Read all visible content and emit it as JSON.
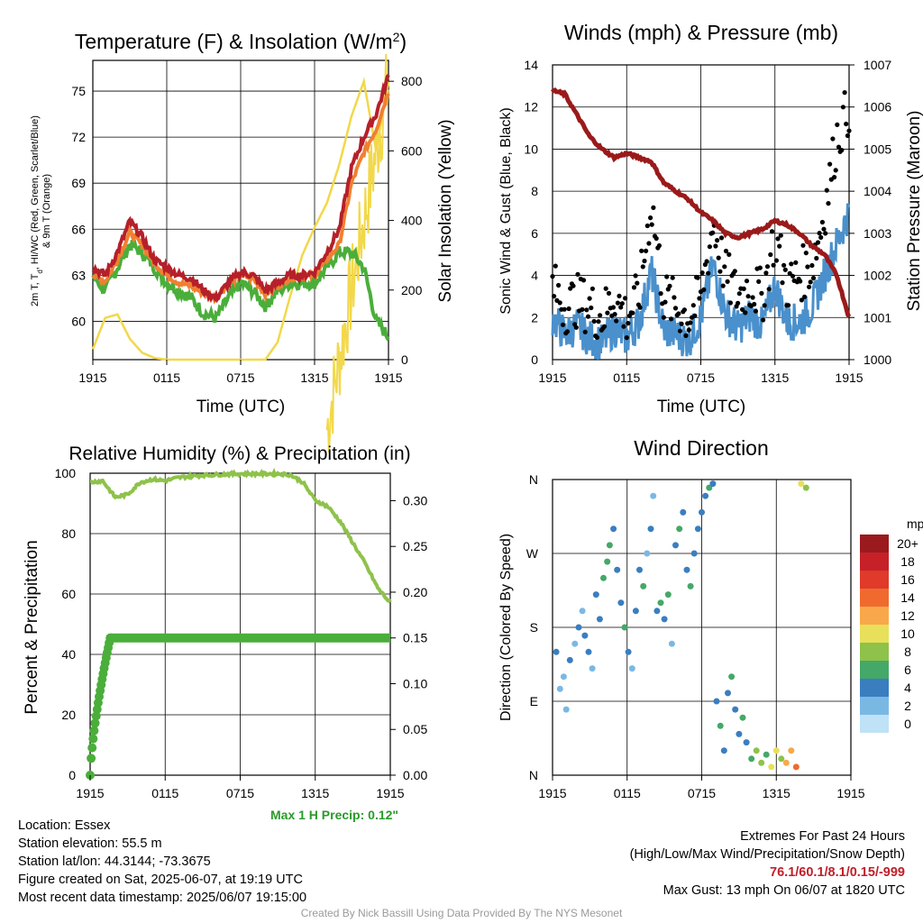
{
  "colors": {
    "temp": "#b5202a",
    "heat_index": "#b5202a",
    "dewpoint": "#4aae3a",
    "temp_9m": "#f08030",
    "insolation": "#f2d84a",
    "wind": "#4a90cc",
    "gust": "#000000",
    "pressure": "#9a1a1a",
    "rh": "#8ec24a",
    "precip": "#4aae3a"
  },
  "x_ticks": [
    "1915",
    "0115",
    "0715",
    "1315",
    "1915"
  ],
  "panels": {
    "temperature": {
      "title": "Temperature (F) & Insolation (W/m",
      "title_sup": "2",
      "title_end": ")",
      "xlabel": "Time (UTC)",
      "ylabel_left_line1": "2m T, T",
      "ylabel_left_sub": "d",
      "ylabel_left_line1_end": ", HI/WC (Red, Green, Scarlet/Blue)",
      "ylabel_left_line2": "& 9m T (Orange)",
      "ylabel_right": "Solar Insolation (Yellow)",
      "yticks_left": [
        "60",
        "63",
        "66",
        "69",
        "72",
        "75"
      ],
      "yticks_right": [
        "0",
        "200",
        "400",
        "600",
        "800"
      ]
    },
    "winds": {
      "title": "Winds (mph) & Pressure (mb)",
      "xlabel": "Time (UTC)",
      "ylabel_left": "Sonic Wind & Gust (Blue, Black)",
      "ylabel_right": "Station Pressure (Maroon)",
      "yticks_left": [
        "0",
        "2",
        "4",
        "6",
        "8",
        "10",
        "12",
        "14"
      ],
      "yticks_right": [
        "1000",
        "1001",
        "1002",
        "1003",
        "1004",
        "1005",
        "1006",
        "1007"
      ]
    },
    "humidity": {
      "title": "Relative Humidity (%) & Precipitation (in)",
      "ylabel_left": "Percent & Precipitation",
      "yticks_left": [
        "0",
        "20",
        "40",
        "60",
        "80",
        "100"
      ],
      "yticks_right": [
        "0.00",
        "0.05",
        "0.10",
        "0.15",
        "0.20",
        "0.25",
        "0.30"
      ],
      "max_precip": "Max 1 H Precip: 0.12\""
    },
    "direction": {
      "title": "Wind Direction",
      "ylabel_left": "Direction (Colored By Speed)",
      "yticks_left": [
        "N",
        "E",
        "S",
        "W",
        "N"
      ],
      "legend_title": "mph",
      "legend": [
        {
          "label": "20+",
          "color": "#9a1a1e"
        },
        {
          "label": "18",
          "color": "#c62028"
        },
        {
          "label": "16",
          "color": "#e03a2a"
        },
        {
          "label": "14",
          "color": "#f06a2e"
        },
        {
          "label": "12",
          "color": "#f8a84a"
        },
        {
          "label": "10",
          "color": "#e8e05a"
        },
        {
          "label": "8",
          "color": "#8ec24a"
        },
        {
          "label": "6",
          "color": "#44a868"
        },
        {
          "label": "4",
          "color": "#3a7ec0"
        },
        {
          "label": "2",
          "color": "#7ab8e4"
        },
        {
          "label": "0",
          "color": "#bfe2f6"
        }
      ]
    }
  },
  "info": {
    "location": "Location: Essex",
    "elevation": "Station elevation: 55.5 m",
    "latlon": "Station lat/lon: 44.3144; -73.3675",
    "created": "Figure created on Sat, 2025-06-07, at 19:19 UTC",
    "recent": "Most recent data timestamp: 2025/06/07 19:15:00"
  },
  "extremes": {
    "heading": "Extremes For Past 24 Hours",
    "subheading": "(High/Low/Max Wind/Precipitation/Snow Depth)",
    "values": "76.1/60.1/8.1/0.15/-999",
    "max_gust": "Max Gust: 13 mph On 06/07 at 1820 UTC"
  },
  "credit": "Created By Nick Bassill Using Data Provided By The NYS Mesonet",
  "chart_data": [
    {
      "type": "line",
      "title": "Temperature (F) & Insolation (W/m2)",
      "xlabel": "Time (UTC)",
      "x": [
        0,
        1,
        2,
        3,
        4,
        5,
        6,
        7,
        8,
        9,
        10,
        11,
        12,
        13,
        14,
        15,
        16,
        17,
        18,
        19,
        20,
        21,
        22,
        23,
        24
      ],
      "ylim": [
        57.5,
        77
      ],
      "y2lim": [
        0,
        860
      ],
      "series": [
        {
          "name": "2m T",
          "axis": "left",
          "values": [
            63.5,
            63.0,
            64.5,
            66.5,
            65.5,
            64.0,
            63.5,
            63.0,
            62.8,
            62.0,
            61.5,
            62.5,
            63.2,
            63.0,
            62.0,
            62.5,
            63.0,
            63.0,
            63.2,
            64.5,
            66.0,
            70.0,
            72.0,
            73.5,
            76.0
          ]
        },
        {
          "name": "9m T",
          "axis": "left",
          "values": [
            63.0,
            62.6,
            64.0,
            65.8,
            65.0,
            63.8,
            63.0,
            62.5,
            62.3,
            61.8,
            61.5,
            62.5,
            63.0,
            62.8,
            61.8,
            62.3,
            62.8,
            63.0,
            63.0,
            64.0,
            65.0,
            69.0,
            71.0,
            72.5,
            75.0
          ]
        },
        {
          "name": "T_d",
          "axis": "left",
          "values": [
            63.0,
            62.0,
            63.5,
            65.0,
            64.5,
            63.5,
            62.5,
            62.0,
            61.5,
            60.5,
            60.2,
            61.5,
            62.5,
            62.0,
            61.0,
            62.0,
            62.5,
            62.5,
            62.5,
            63.5,
            64.5,
            64.5,
            63.5,
            60.0,
            59.0
          ]
        },
        {
          "name": "Solar Insolation",
          "axis": "right",
          "values": [
            30,
            120,
            130,
            60,
            20,
            5,
            0,
            0,
            0,
            0,
            0,
            0,
            0,
            0,
            0,
            50,
            180,
            300,
            380,
            450,
            560,
            700,
            800,
            600,
            800
          ]
        }
      ]
    },
    {
      "type": "line",
      "title": "Winds (mph) & Pressure (mb)",
      "xlabel": "Time (UTC)",
      "x": [
        0,
        1,
        2,
        3,
        4,
        5,
        6,
        7,
        8,
        9,
        10,
        11,
        12,
        13,
        14,
        15,
        16,
        17,
        18,
        19,
        20,
        21,
        22,
        23,
        24
      ],
      "ylim": [
        0,
        14
      ],
      "y2lim": [
        1000,
        1007
      ],
      "series": [
        {
          "name": "Sonic Wind",
          "axis": "left",
          "values": [
            2.0,
            1.2,
            1.6,
            1.0,
            0.8,
            1.5,
            1.0,
            1.8,
            4.2,
            1.4,
            1.2,
            0.9,
            2.0,
            4.5,
            2.2,
            1.5,
            2.1,
            1.6,
            3.5,
            1.8,
            1.8,
            2.5,
            4.0,
            5.5,
            7.0
          ]
        },
        {
          "name": "Gust",
          "axis": "left",
          "values": [
            3.5,
            2.5,
            2.8,
            2.5,
            2.0,
            3.0,
            2.0,
            3.0,
            7.5,
            3.0,
            2.5,
            2.0,
            3.0,
            6.5,
            4.0,
            3.0,
            3.5,
            3.0,
            6.0,
            3.5,
            4.0,
            4.5,
            7.0,
            10.5,
            12.0
          ]
        },
        {
          "name": "Station Pressure",
          "axis": "right",
          "values": [
            1006.4,
            1006.3,
            1005.8,
            1005.3,
            1005.0,
            1004.8,
            1004.9,
            1004.8,
            1004.7,
            1004.2,
            1004.0,
            1003.8,
            1003.5,
            1003.3,
            1003.0,
            1002.9,
            1003.0,
            1003.1,
            1003.3,
            1003.2,
            1003.0,
            1002.7,
            1002.5,
            1002.0,
            1001.0
          ]
        }
      ]
    },
    {
      "type": "line",
      "title": "Relative Humidity (%) & Precipitation (in)",
      "x": [
        0,
        1,
        2,
        3,
        4,
        5,
        6,
        7,
        8,
        9,
        10,
        11,
        12,
        13,
        14,
        15,
        16,
        17,
        18,
        19,
        20,
        21,
        22,
        23,
        24
      ],
      "ylim": [
        0,
        100
      ],
      "y2lim": [
        0,
        0.33
      ],
      "series": [
        {
          "name": "Relative Humidity",
          "axis": "left",
          "values": [
            97,
            97.5,
            92,
            93,
            97,
            98,
            97.5,
            98.5,
            99,
            99.3,
            99.5,
            99.7,
            99.8,
            99.8,
            99.8,
            99.8,
            99.5,
            97,
            91,
            89,
            84,
            77,
            70,
            62,
            57
          ]
        },
        {
          "name": "Precipitation",
          "axis": "right",
          "values": [
            0.0,
            0.1,
            0.15,
            0.15,
            0.15,
            0.15,
            0.15,
            0.15,
            0.15,
            0.15,
            0.15,
            0.15,
            0.15,
            0.15,
            0.15,
            0.15,
            0.15,
            0.15,
            0.15,
            0.15,
            0.15,
            0.15,
            0.15,
            0.15,
            0.15
          ]
        }
      ]
    },
    {
      "type": "scatter",
      "title": "Wind Direction",
      "yticks": [
        "N",
        "E",
        "S",
        "W",
        "N"
      ],
      "ylim": [
        0,
        360
      ],
      "xlim": [
        0,
        24
      ],
      "points": [
        [
          0.3,
          150,
          2
        ],
        [
          0.6,
          105,
          1
        ],
        [
          0.9,
          120,
          1
        ],
        [
          1.1,
          80,
          1
        ],
        [
          1.4,
          140,
          2
        ],
        [
          1.8,
          160,
          1
        ],
        [
          2.1,
          180,
          2
        ],
        [
          2.4,
          200,
          1
        ],
        [
          2.6,
          170,
          2
        ],
        [
          2.9,
          150,
          2
        ],
        [
          3.2,
          130,
          1
        ],
        [
          3.5,
          220,
          2
        ],
        [
          3.8,
          190,
          2
        ],
        [
          4.1,
          240,
          3
        ],
        [
          4.4,
          260,
          3
        ],
        [
          4.6,
          280,
          3
        ],
        [
          4.9,
          300,
          2
        ],
        [
          5.2,
          250,
          2
        ],
        [
          5.5,
          210,
          2
        ],
        [
          5.8,
          180,
          3
        ],
        [
          6.1,
          150,
          2
        ],
        [
          6.4,
          130,
          1
        ],
        [
          6.7,
          200,
          2
        ],
        [
          7.0,
          250,
          2
        ],
        [
          7.3,
          230,
          3
        ],
        [
          7.6,
          270,
          1
        ],
        [
          7.9,
          300,
          2
        ],
        [
          8.1,
          340,
          1
        ],
        [
          8.4,
          200,
          2
        ],
        [
          8.7,
          210,
          3
        ],
        [
          9.0,
          190,
          2
        ],
        [
          9.3,
          220,
          3
        ],
        [
          9.6,
          160,
          1
        ],
        [
          9.9,
          280,
          2
        ],
        [
          10.2,
          300,
          3
        ],
        [
          10.5,
          320,
          2
        ],
        [
          10.8,
          250,
          2
        ],
        [
          11.1,
          230,
          3
        ],
        [
          11.4,
          270,
          2
        ],
        [
          11.7,
          300,
          2
        ],
        [
          12.0,
          320,
          2
        ],
        [
          12.3,
          340,
          2
        ],
        [
          12.6,
          350,
          3
        ],
        [
          12.9,
          355,
          2
        ],
        [
          13.2,
          90,
          2
        ],
        [
          13.5,
          60,
          3
        ],
        [
          13.8,
          30,
          2
        ],
        [
          14.1,
          100,
          2
        ],
        [
          14.4,
          120,
          3
        ],
        [
          14.7,
          80,
          2
        ],
        [
          15.0,
          50,
          2
        ],
        [
          15.3,
          70,
          3
        ],
        [
          15.6,
          40,
          2
        ],
        [
          16.0,
          20,
          3
        ],
        [
          16.4,
          30,
          4
        ],
        [
          16.8,
          15,
          4
        ],
        [
          17.2,
          25,
          3
        ],
        [
          17.6,
          10,
          5
        ],
        [
          18.0,
          30,
          5
        ],
        [
          18.4,
          20,
          4
        ],
        [
          18.8,
          15,
          6
        ],
        [
          19.2,
          30,
          6
        ],
        [
          19.6,
          10,
          7
        ],
        [
          20.0,
          355,
          5
        ],
        [
          20.4,
          350,
          4
        ]
      ]
    }
  ]
}
